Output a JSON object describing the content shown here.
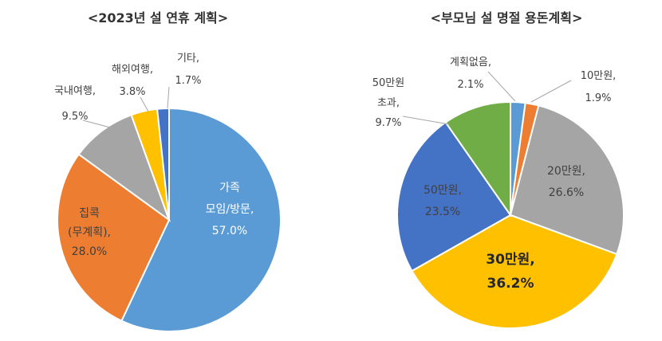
{
  "chart_data": [
    {
      "type": "pie",
      "title": "<2023년 설 연휴 계획>",
      "slices": [
        {
          "lines": [
            "가족",
            "모임/방문,",
            "57.0%"
          ],
          "value": 57.0,
          "color": "#5b9bd5"
        },
        {
          "lines": [
            "집콕",
            "(무계획),",
            "28.0%"
          ],
          "value": 28.0,
          "color": "#ed7d31"
        },
        {
          "lines": [
            "국내여행,",
            "9.5%"
          ],
          "value": 9.5,
          "color": "#a5a5a5"
        },
        {
          "lines": [
            "해외여행,",
            "3.8%"
          ],
          "value": 3.8,
          "color": "#ffc000"
        },
        {
          "lines": [
            "기타,",
            "1.7%"
          ],
          "value": 1.7,
          "color": "#4472c4"
        }
      ]
    },
    {
      "type": "pie",
      "title": "<부모님 설 명절 용돈계획>",
      "slices": [
        {
          "lines": [
            "계획없음,",
            "2.1%"
          ],
          "value": 2.1,
          "color": "#5b9bd5"
        },
        {
          "lines": [
            "10만원,",
            "1.9%"
          ],
          "value": 1.9,
          "color": "#ed7d31"
        },
        {
          "lines": [
            "20만원,",
            "26.6%"
          ],
          "value": 26.6,
          "color": "#a5a5a5"
        },
        {
          "lines": [
            "30만원,",
            "36.2%"
          ],
          "value": 36.2,
          "color": "#ffc000"
        },
        {
          "lines": [
            "50만원,",
            "23.5%"
          ],
          "value": 23.5,
          "color": "#4472c4"
        },
        {
          "lines": [
            "50만원",
            "초과,",
            "9.7%"
          ],
          "value": 9.7,
          "color": "#70ad47"
        }
      ]
    }
  ]
}
